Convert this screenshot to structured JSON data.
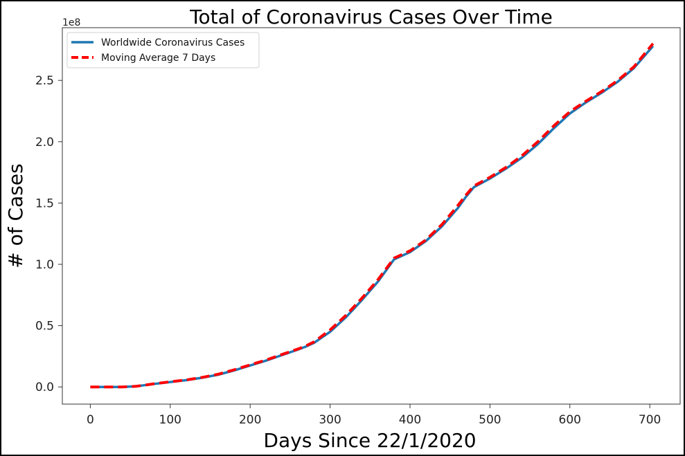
{
  "chart_data": {
    "type": "line",
    "title": "Total of Coronavirus Cases Over Time",
    "xlabel": "Days Since 22/1/2020",
    "ylabel": "# of Cases",
    "y_offset_label": "1e8",
    "xlim": [
      -35,
      738
    ],
    "ylim": [
      -0.14,
      2.93
    ],
    "xticks": [
      0,
      100,
      200,
      300,
      400,
      500,
      600,
      700
    ],
    "yticks": [
      0.0,
      0.5,
      1.0,
      1.5,
      2.0,
      2.5
    ],
    "ytick_labels": [
      "0.0",
      "0.5",
      "1.0",
      "1.5",
      "2.0",
      "2.5"
    ],
    "grid": false,
    "legend_position": "upper-left",
    "series": [
      {
        "name": "Worldwide Coronavirus Cases",
        "color": "#1f77b4",
        "style": "solid",
        "x": [
          0,
          20,
          40,
          57,
          80,
          100,
          120,
          140,
          160,
          180,
          200,
          220,
          240,
          260,
          270,
          280,
          300,
          320,
          340,
          360,
          380,
          400,
          420,
          440,
          460,
          470,
          480,
          500,
          520,
          540,
          560,
          580,
          600,
          620,
          640,
          660,
          680,
          704
        ],
        "values": [
          0.0,
          0.0,
          0.0,
          0.005,
          0.025,
          0.04,
          0.055,
          0.075,
          0.1,
          0.135,
          0.175,
          0.215,
          0.26,
          0.305,
          0.33,
          0.36,
          0.45,
          0.57,
          0.71,
          0.86,
          1.04,
          1.1,
          1.19,
          1.31,
          1.46,
          1.55,
          1.63,
          1.7,
          1.78,
          1.87,
          1.98,
          2.11,
          2.23,
          2.32,
          2.4,
          2.49,
          2.6,
          2.78
        ]
      },
      {
        "name": "Moving Average 7 Days",
        "color": "#ff0000",
        "style": "dashed",
        "x": [
          0,
          20,
          40,
          57,
          80,
          100,
          120,
          140,
          160,
          180,
          200,
          220,
          240,
          260,
          270,
          280,
          300,
          320,
          340,
          360,
          380,
          400,
          420,
          440,
          460,
          470,
          480,
          500,
          520,
          540,
          560,
          580,
          600,
          620,
          640,
          660,
          680,
          704
        ],
        "values": [
          0.0,
          0.0,
          0.0,
          0.005,
          0.026,
          0.042,
          0.057,
          0.078,
          0.104,
          0.14,
          0.18,
          0.22,
          0.265,
          0.31,
          0.336,
          0.368,
          0.465,
          0.585,
          0.725,
          0.875,
          1.05,
          1.11,
          1.2,
          1.325,
          1.48,
          1.565,
          1.64,
          1.71,
          1.79,
          1.885,
          2.0,
          2.13,
          2.245,
          2.33,
          2.41,
          2.5,
          2.61,
          2.8
        ]
      }
    ]
  }
}
